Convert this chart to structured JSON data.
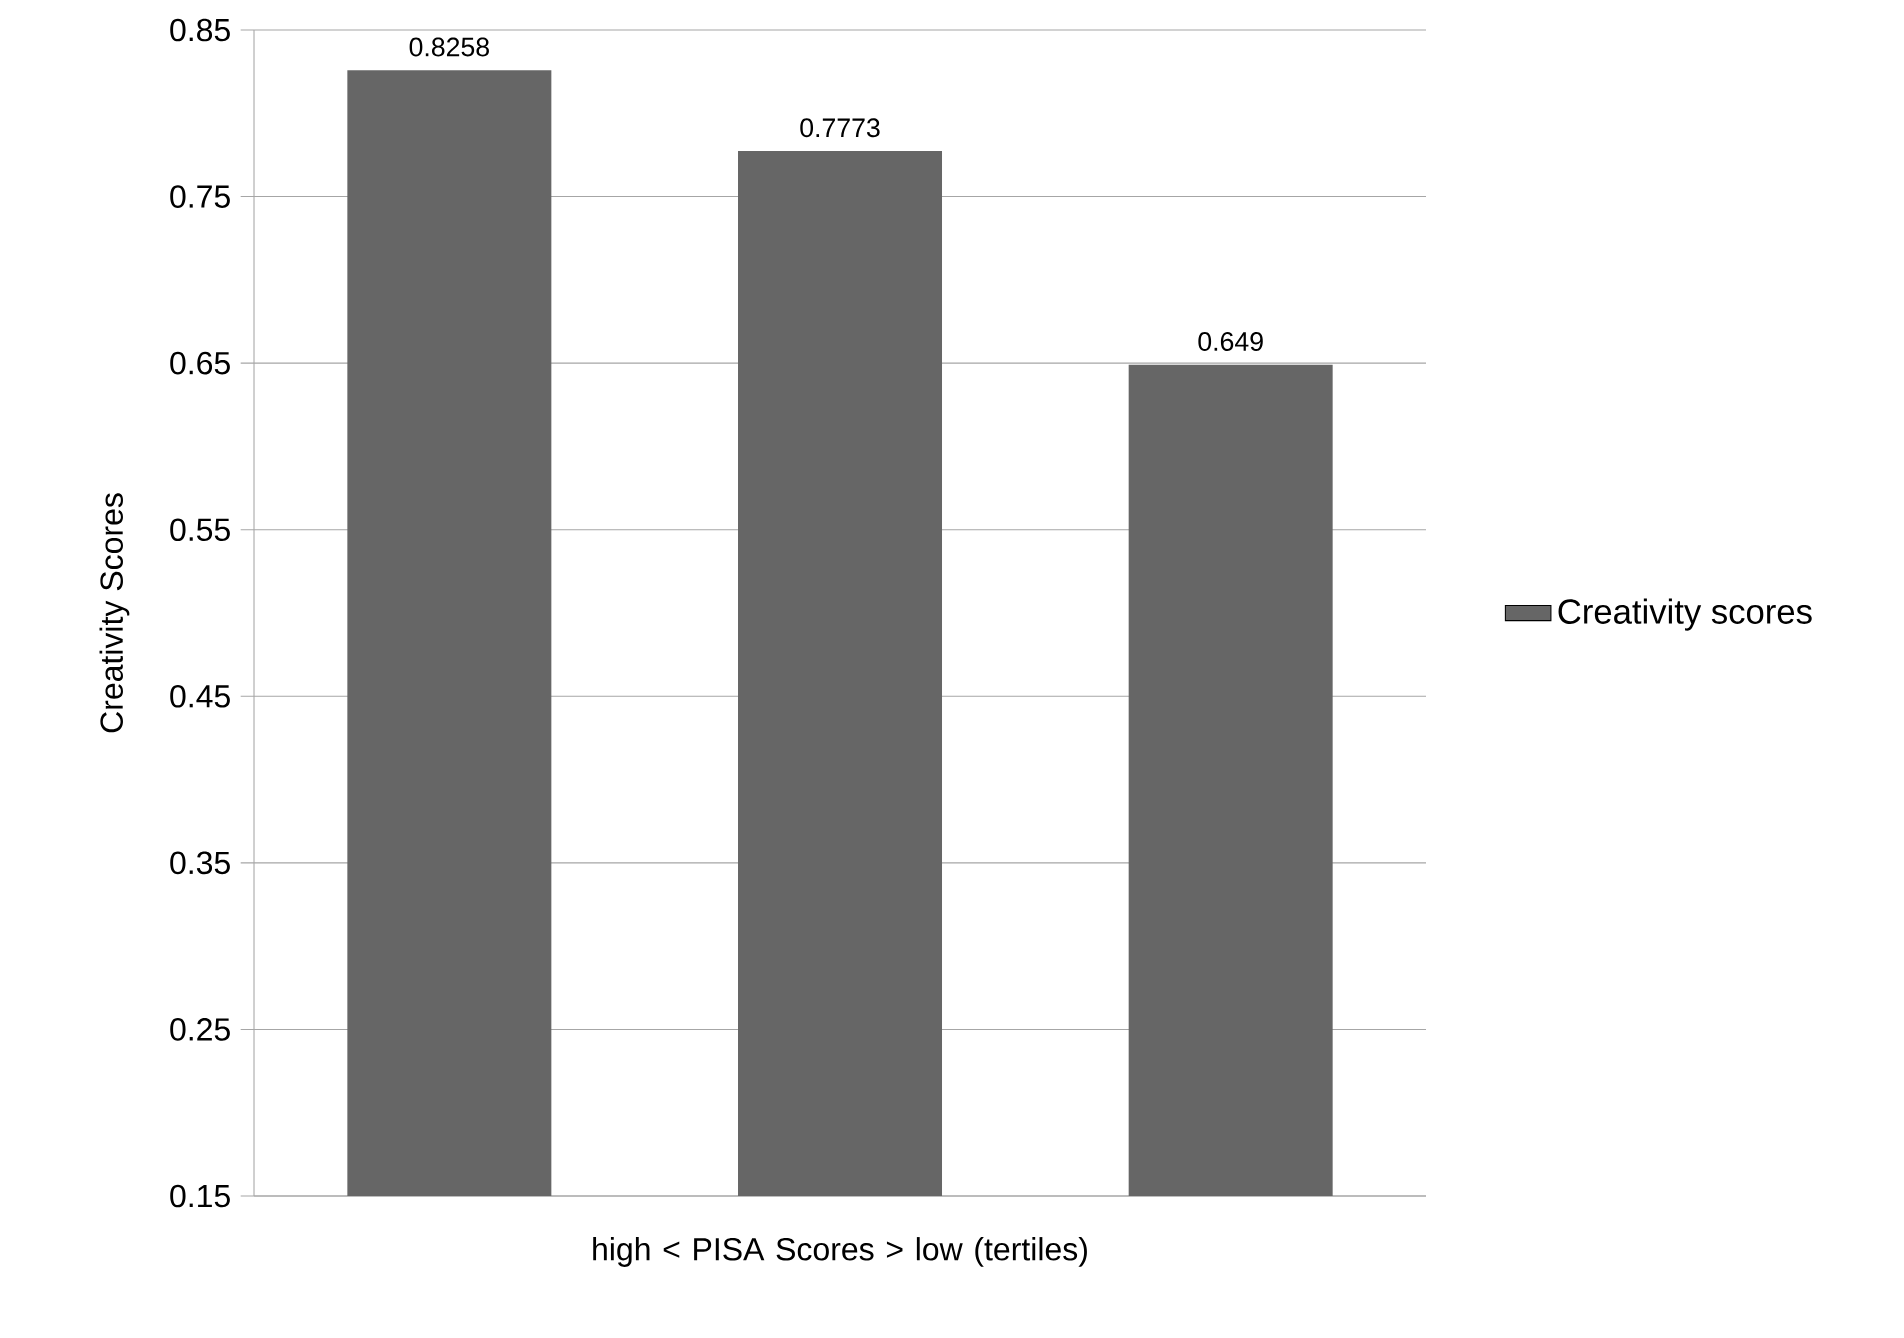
{
  "chart_data": {
    "type": "bar",
    "xlabel": "high  <  PISA Scores  >  low (tertiles)",
    "ylabel": "Creativity Scores",
    "categories": [
      null,
      null,
      null
    ],
    "series": [
      {
        "name": "Creativity scores",
        "color": "#666666",
        "values": [
          0.8258,
          0.7773,
          0.649
        ]
      }
    ],
    "ylim": [
      0.15,
      0.85
    ],
    "yticks": [
      0.15,
      0.25,
      0.35,
      0.45,
      0.55,
      0.65,
      0.75,
      0.85
    ],
    "grid": "y",
    "legend": "right",
    "data_labels": true
  }
}
